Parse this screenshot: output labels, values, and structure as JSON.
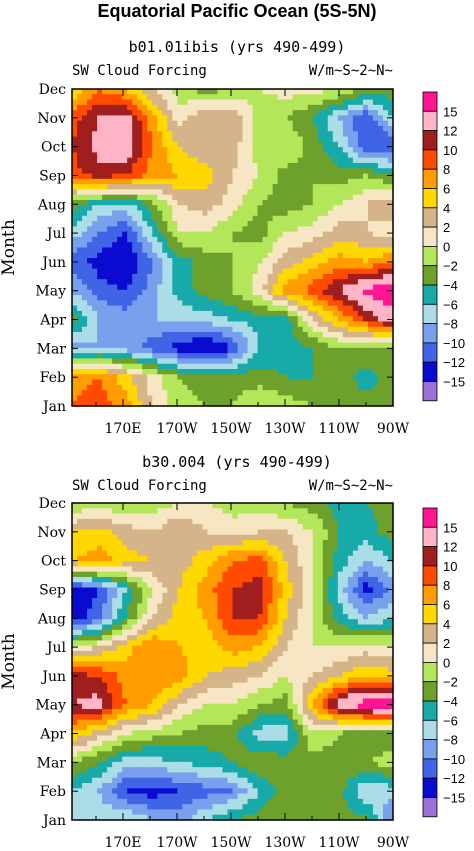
{
  "title": "Equatorial Pacific Ocean (5S-5N)",
  "colors": {
    "levels": [
      -15,
      -12,
      -10,
      -8,
      -6,
      -4,
      -2,
      0,
      2,
      4,
      6,
      8,
      10,
      12,
      15
    ],
    "fills": [
      "#9b6fd8",
      "#0a0ad0",
      "#3f64e6",
      "#78a0ec",
      "#aadde8",
      "#17aaa8",
      "#6ea02c",
      "#b4e65a",
      "#f6e6c3",
      "#d6b48a",
      "#ffd800",
      "#ff9d00",
      "#ff4b00",
      "#a01e1e",
      "#ffb4c8",
      "#ff1491"
    ]
  },
  "chart_data": [
    {
      "type": "heatmap",
      "title": "b01.01ibis (yrs 490-499)",
      "left_label": "SW Cloud Forcing",
      "right_label": "W/m~S~2~N~",
      "ylabel": "Month",
      "y": [
        "Jan",
        "Feb",
        "Mar",
        "Apr",
        "May",
        "Jun",
        "Jul",
        "Aug",
        "Sep",
        "Oct",
        "Nov",
        "Dec"
      ],
      "x_ticks": [
        "170E",
        "170W",
        "150W",
        "130W",
        "110W",
        "90W"
      ],
      "x": [
        "150E",
        "160E",
        "170E",
        "180",
        "170W",
        "160W",
        "150W",
        "140W",
        "130W",
        "120W",
        "110W",
        "100W",
        "90W"
      ],
      "legend": [
        "15",
        "12",
        "10",
        "8",
        "6",
        "4",
        "2",
        "0",
        "−2",
        "−4",
        "−6",
        "−8",
        "−10",
        "−12",
        "−15"
      ],
      "values": [
        [
          8,
          9,
          7,
          2,
          -1,
          -2,
          -2,
          0,
          -1,
          -2,
          -3,
          -3,
          -2
        ],
        [
          7,
          8,
          5,
          1,
          -2,
          -3,
          -3,
          -3,
          -4,
          -4,
          -3,
          -5,
          -3
        ],
        [
          -9,
          -8,
          -9,
          -11,
          -13,
          -15,
          -12,
          -6,
          -5,
          -4,
          -2,
          -2,
          -3
        ],
        [
          -3,
          -8,
          -9,
          -8,
          -8,
          -7,
          -6,
          -5,
          -5,
          2,
          6,
          10,
          14
        ],
        [
          -8,
          -11,
          -12,
          -9,
          -5,
          -3,
          -2,
          1,
          7,
          9,
          12,
          16,
          17
        ],
        [
          -11,
          -13,
          -14,
          -10,
          -5,
          -3,
          -2,
          0,
          3,
          5,
          7,
          6,
          8
        ],
        [
          -7,
          -10,
          -12,
          -6,
          0,
          0,
          -2,
          -3,
          0,
          1,
          3,
          2,
          1
        ],
        [
          -3,
          -6,
          -7,
          -3,
          2,
          3,
          1,
          -2,
          -3,
          -2,
          0,
          2,
          4
        ],
        [
          9,
          11,
          10,
          7,
          6,
          5,
          2,
          0,
          -3,
          -2,
          -3,
          -2,
          -4
        ],
        [
          10,
          13,
          14,
          8,
          4,
          2,
          3,
          -1,
          0,
          -3,
          -6,
          -12,
          -12
        ],
        [
          9,
          12,
          13,
          7,
          1,
          4,
          4,
          -1,
          -2,
          -4,
          -8,
          -12,
          -6
        ],
        [
          4,
          8,
          6,
          2,
          -1,
          -3,
          -2,
          0,
          1,
          1,
          0,
          -2,
          -3
        ]
      ]
    },
    {
      "type": "heatmap",
      "title": "b30.004 (yrs 490-499)",
      "left_label": "SW Cloud Forcing",
      "right_label": "W/m~S~2~N~",
      "ylabel": "Month",
      "y": [
        "Jan",
        "Feb",
        "Mar",
        "Apr",
        "May",
        "Jun",
        "Jul",
        "Aug",
        "Sep",
        "Oct",
        "Nov",
        "Dec"
      ],
      "x_ticks": [
        "170E",
        "170W",
        "150W",
        "130W",
        "110W",
        "90W"
      ],
      "x": [
        "150E",
        "160E",
        "170E",
        "180",
        "170W",
        "160W",
        "150W",
        "140W",
        "130W",
        "120W",
        "110W",
        "100W",
        "90W"
      ],
      "legend": [
        "15",
        "12",
        "10",
        "8",
        "6",
        "4",
        "2",
        "0",
        "−2",
        "−4",
        "−6",
        "−8",
        "−10",
        "−12",
        "−15"
      ],
      "values": [
        [
          -6,
          -7,
          -6,
          -8,
          -9,
          -6,
          -4,
          -3,
          -2,
          -3,
          -4,
          -3,
          -11
        ],
        [
          -6,
          -8,
          -12,
          -13,
          -12,
          -11,
          -10,
          -6,
          -3,
          -4,
          -3,
          -8,
          -7
        ],
        [
          -2,
          -4,
          -7,
          -7,
          -6,
          -5,
          -4,
          -2,
          -3,
          -3,
          -3,
          -2,
          -1
        ],
        [
          6,
          3,
          0,
          -1,
          -2,
          -3,
          -3,
          -7,
          -7,
          0,
          -2,
          -4,
          -3
        ],
        [
          12,
          13,
          8,
          6,
          2,
          0,
          0,
          -2,
          -3,
          6,
          14,
          17,
          17
        ],
        [
          11,
          10,
          7,
          8,
          7,
          4,
          3,
          2,
          0,
          2,
          4,
          6,
          5
        ],
        [
          0,
          2,
          5,
          8,
          6,
          5,
          7,
          6,
          2,
          0,
          0,
          1,
          0
        ],
        [
          -13,
          -11,
          -4,
          2,
          5,
          6,
          10,
          10,
          4,
          0,
          -5,
          -8,
          -6
        ],
        [
          -14,
          -12,
          -6,
          0,
          4,
          7,
          10,
          11,
          5,
          0,
          -7,
          -13,
          -9
        ],
        [
          6,
          7,
          5,
          4,
          3,
          5,
          8,
          9,
          4,
          0,
          -5,
          -8,
          -6
        ],
        [
          4,
          5,
          3,
          2,
          4,
          2,
          1,
          2,
          2,
          0,
          -4,
          -5,
          -3
        ],
        [
          -2,
          -1,
          -2,
          -1,
          0,
          0,
          -1,
          -1,
          -2,
          -3,
          -5,
          -4,
          -3
        ]
      ]
    }
  ]
}
